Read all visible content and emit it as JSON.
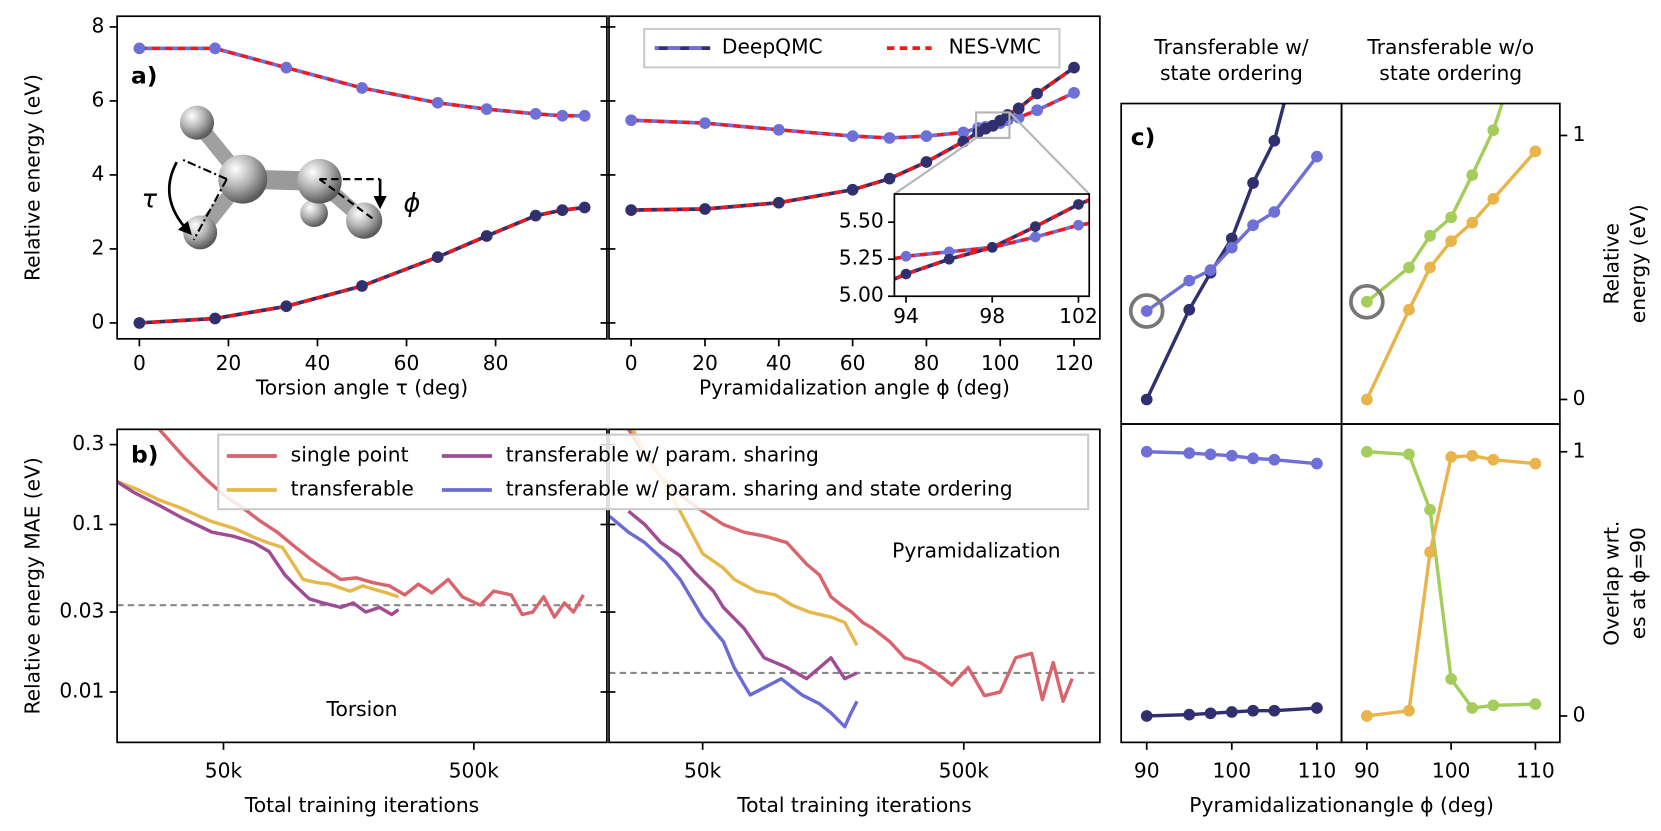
{
  "chart_data": [
    {
      "type": "line",
      "label": "a)",
      "ylabel": "Relative energy (eV)",
      "ylim": [
        -0.43,
        8.29
      ],
      "yticks": [
        0,
        2,
        4,
        6,
        8
      ],
      "legend": "upper right",
      "series": [
        {
          "name": "DeepQMC",
          "colors": [
            "#30306e",
            "#6e70d8"
          ],
          "markers": true
        },
        {
          "name": "NES-VMC",
          "color": "#ff1414",
          "dash": true
        }
      ],
      "molecule_labels": [
        "τ",
        "ϕ"
      ],
      "panels": [
        {
          "xlabel": "Torsion angle τ (deg)",
          "xlim": [
            -5,
            105
          ],
          "xticks": [
            0,
            20,
            40,
            60,
            80
          ],
          "x": [
            0,
            17,
            33,
            50,
            67,
            78,
            89,
            95,
            100
          ],
          "lines": [
            {
              "series": 0,
              "color": "#6e70d8",
              "values": [
                7.42,
                7.42,
                6.9,
                6.35,
                5.95,
                5.78,
                5.65,
                5.6,
                5.6
              ]
            },
            {
              "series": 0,
              "color": "#30306e",
              "values": [
                0,
                0.12,
                0.45,
                1.0,
                1.78,
                2.35,
                2.9,
                3.05,
                3.12
              ]
            },
            {
              "series": 1,
              "values": [
                7.42,
                7.42,
                6.9,
                6.35,
                5.95,
                5.78,
                5.65,
                5.6,
                5.6
              ]
            },
            {
              "series": 1,
              "values": [
                0,
                0.12,
                0.45,
                1.0,
                1.78,
                2.35,
                2.9,
                3.05,
                3.12
              ]
            }
          ]
        },
        {
          "xlabel": "Pyramidalization angle ϕ (deg)",
          "xlim": [
            -6,
            127
          ],
          "xticks": [
            0,
            20,
            40,
            60,
            80,
            100,
            120
          ],
          "x": [
            0,
            20,
            40,
            60,
            70,
            80,
            90,
            94,
            96,
            98,
            100,
            102,
            105,
            110,
            120
          ],
          "lines": [
            {
              "series": 0,
              "color": "#6e70d8",
              "values": [
                5.48,
                5.4,
                5.22,
                5.05,
                5.0,
                5.05,
                5.15,
                5.27,
                5.3,
                5.33,
                5.4,
                5.48,
                5.55,
                5.75,
                6.22
              ]
            },
            {
              "series": 0,
              "color": "#30306e",
              "values": [
                3.05,
                3.08,
                3.25,
                3.6,
                3.9,
                4.35,
                4.9,
                5.15,
                5.25,
                5.33,
                5.47,
                5.62,
                5.8,
                6.2,
                6.9
              ]
            },
            {
              "series": 1,
              "values": [
                5.48,
                5.4,
                5.22,
                5.05,
                5.0,
                5.05,
                5.15,
                5.27,
                5.3,
                5.33,
                5.4,
                5.48,
                5.55,
                5.75,
                6.22
              ]
            },
            {
              "series": 1,
              "values": [
                3.05,
                3.08,
                3.25,
                3.6,
                3.9,
                4.35,
                4.9,
                5.15,
                5.25,
                5.33,
                5.47,
                5.62,
                5.8,
                6.2,
                6.9
              ]
            }
          ],
          "inset": {
            "xlim": [
              93.46,
              102.5
            ],
            "ylim": [
              5.0,
              5.69
            ],
            "xticks": [
              94,
              98,
              102
            ],
            "yticks": [
              {
                "value": 5,
                "label": "5.00"
              },
              {
                "value": 5.25,
                "label": "5.25"
              },
              {
                "value": 5.5,
                "label": "5.50"
              }
            ]
          }
        }
      ]
    },
    {
      "type": "line",
      "label": "b)",
      "ylabel": "Relative energy MAE (eV)",
      "xscale": "log",
      "yscale": "log",
      "ylim": [
        0.005,
        0.37
      ],
      "yticks": [
        0.01,
        0.03,
        0.1,
        0.3
      ],
      "legend": "upper center",
      "series": [
        {
          "name": "single point",
          "color": "#d9646c"
        },
        {
          "name": "transferable",
          "color": "#e6b84a"
        },
        {
          "name": "transferable w/ param. sharing",
          "color": "#a04b96"
        },
        {
          "name": "transferable w/ param. sharing and state ordering",
          "color": "#6b6bd6"
        }
      ],
      "panels": [
        {
          "annotation": "Torsion",
          "xlabel": "Total training iterations",
          "xlim": [
            18800,
            1700000
          ],
          "xticks": [
            {
              "value": 50000,
              "label": "50k"
            },
            {
              "value": 500000,
              "label": "500k"
            }
          ],
          "reference": 0.033,
          "lines": [
            {
              "series": 0,
              "x": [
                27700,
                35000,
                42000,
                50000,
                60000,
                70000,
                82000,
                95000,
                110000,
                125000,
                147000,
                170000,
                197000,
                230000,
                265000,
                300000,
                340000,
                395000,
                450000,
                530000,
                600000,
                705000,
                780000,
                860000,
                950000,
                1050000,
                1150000,
                1250000,
                1370000
              ],
              "values": [
                0.37,
                0.25,
                0.19,
                0.15,
                0.125,
                0.105,
                0.09,
                0.075,
                0.063,
                0.055,
                0.047,
                0.048,
                0.045,
                0.043,
                0.038,
                0.044,
                0.039,
                0.047,
                0.037,
                0.033,
                0.04,
                0.038,
                0.029,
                0.03,
                0.037,
                0.028,
                0.034,
                0.03,
                0.038
              ]
            },
            {
              "series": 1,
              "x": [
                18800,
                22000,
                27700,
                34000,
                40000,
                45000,
                55000,
                66000,
                75000,
                86000,
                95000,
                104000,
                118000,
                133000,
                160000,
                180000,
                200000,
                225000,
                250000
              ],
              "values": [
                0.18,
                0.165,
                0.14,
                0.125,
                0.112,
                0.104,
                0.095,
                0.084,
                0.078,
                0.073,
                0.058,
                0.047,
                0.045,
                0.044,
                0.04,
                0.043,
                0.041,
                0.039,
                0.037
              ]
            },
            {
              "series": 2,
              "x": [
                18800,
                22000,
                27700,
                34000,
                45000,
                55000,
                66000,
                76000,
                88000,
                97000,
                110000,
                125000,
                147000,
                165000,
                185000,
                210000,
                235000,
                250000
              ],
              "values": [
                0.18,
                0.155,
                0.13,
                0.11,
                0.09,
                0.085,
                0.078,
                0.069,
                0.05,
                0.043,
                0.036,
                0.034,
                0.032,
                0.034,
                0.03,
                0.032,
                0.029,
                0.031
              ]
            }
          ]
        },
        {
          "annotation": "Pyramidalization",
          "xlabel": "Total training iterations",
          "xlim": [
            21900,
            1660000
          ],
          "xticks": [
            {
              "value": 50000,
              "label": "50k"
            },
            {
              "value": 500000,
              "label": "500k"
            }
          ],
          "reference": 0.013,
          "lines": [
            {
              "series": 0,
              "x": [
                26000,
                30000,
                34600,
                41000,
                50000,
                60000,
                72000,
                87000,
                105000,
                125000,
                140000,
                155000,
                170000,
                186000,
                205000,
                224000,
                260000,
                297000,
                340000,
                393000,
                450000,
                520000,
                600000,
                690000,
                790000,
                910000,
                1000000,
                1100000,
                1200000,
                1300000
              ],
              "values": [
                0.37,
                0.26,
                0.19,
                0.15,
                0.12,
                0.1,
                0.09,
                0.085,
                0.078,
                0.058,
                0.05,
                0.037,
                0.033,
                0.03,
                0.026,
                0.024,
                0.02,
                0.016,
                0.015,
                0.013,
                0.011,
                0.014,
                0.0095,
                0.01,
                0.016,
                0.017,
                0.009,
                0.015,
                0.0088,
                0.012
              ]
            },
            {
              "series": 1,
              "x": [
                27000,
                30000,
                34600,
                41000,
                50000,
                60000,
                66000,
                80000,
                95000,
                110000,
                128000,
                155000,
                175000,
                195000
              ],
              "values": [
                0.37,
                0.27,
                0.19,
                0.12,
                0.067,
                0.055,
                0.047,
                0.04,
                0.038,
                0.033,
                0.03,
                0.028,
                0.026,
                0.019
              ]
            },
            {
              "series": 2,
              "x": [
                26000,
                30000,
                34600,
                41000,
                47000,
                55000,
                60000,
                72000,
                86000,
                105000,
                125000,
                155000,
                175000,
                195000
              ],
              "values": [
                0.12,
                0.1,
                0.078,
                0.065,
                0.051,
                0.04,
                0.032,
                0.024,
                0.016,
                0.014,
                0.012,
                0.016,
                0.012,
                0.013
              ]
            },
            {
              "series": 3,
              "x": [
                22000,
                26000,
                30000,
                36000,
                41000,
                50000,
                60000,
                66000,
                76000,
                90000,
                100000,
                120000,
                140000,
                155000,
                175000,
                185000,
                195000
              ],
              "values": [
                0.112,
                0.09,
                0.078,
                0.06,
                0.047,
                0.028,
                0.02,
                0.014,
                0.0096,
                0.011,
                0.012,
                0.0096,
                0.0085,
                0.0075,
                0.0062,
                0.0075,
                0.0088
              ]
            }
          ]
        }
      ]
    },
    {
      "type": "line",
      "label": "c)",
      "xlabel": "Pyramidalizationangle ϕ (deg)",
      "xlim": [
        87,
        112.9
      ],
      "xticks": [
        90,
        100,
        110
      ],
      "x": [
        90,
        95,
        97.5,
        100,
        102.5,
        105,
        110
      ],
      "columns": [
        "Transferable w/\nstate ordering",
        "Transferable w/o\nstate ordering"
      ],
      "rows": [
        {
          "ylabel": "Relative\nenergy (eV)",
          "ylim": [
            -0.093,
            1.121
          ],
          "yticks": [
            0,
            1
          ]
        },
        {
          "ylabel": "Overlap wrt.\nes at ϕ=90",
          "ylim": [
            -0.1,
            1.105
          ],
          "yticks": [
            0,
            1
          ]
        }
      ],
      "panels": [
        [
          {
            "lines": [
              {
                "color": "#30306e",
                "values": [
                  0,
                  0.34,
                  0.48,
                  0.61,
                  0.82,
                  0.98,
                  1.6
                ]
              },
              {
                "color": "#6e70d8",
                "values": [
                  0.335,
                  0.45,
                  0.49,
                  0.575,
                  0.66,
                  0.71,
                  0.92
                ]
              }
            ]
          },
          {
            "lines": [
              {
                "color": "#e9b44c",
                "values": [
                  0,
                  0.34,
                  0.5,
                  0.6,
                  0.67,
                  0.76,
                  0.94
                ]
              },
              {
                "color": "#a5cd5b",
                "values": [
                  0.37,
                  0.5,
                  0.62,
                  0.69,
                  0.85,
                  1.02,
                  1.5
                ]
              }
            ]
          }
        ],
        [
          {
            "lines": [
              {
                "color": "#6e70d8",
                "values": [
                  1.0,
                  0.995,
                  0.99,
                  0.985,
                  0.975,
                  0.97,
                  0.955
                ]
              },
              {
                "color": "#30306e",
                "values": [
                  0,
                  0.005,
                  0.01,
                  0.015,
                  0.02,
                  0.02,
                  0.03
                ]
              }
            ]
          },
          {
            "lines": [
              {
                "color": "#a5cd5b",
                "values": [
                  1.0,
                  0.99,
                  0.78,
                  0.14,
                  0.03,
                  0.04,
                  0.045
                ]
              },
              {
                "color": "#e9b44c",
                "values": [
                  0,
                  0.02,
                  0.62,
                  0.98,
                  0.985,
                  0.97,
                  0.955
                ]
              }
            ]
          }
        ]
      ]
    }
  ]
}
